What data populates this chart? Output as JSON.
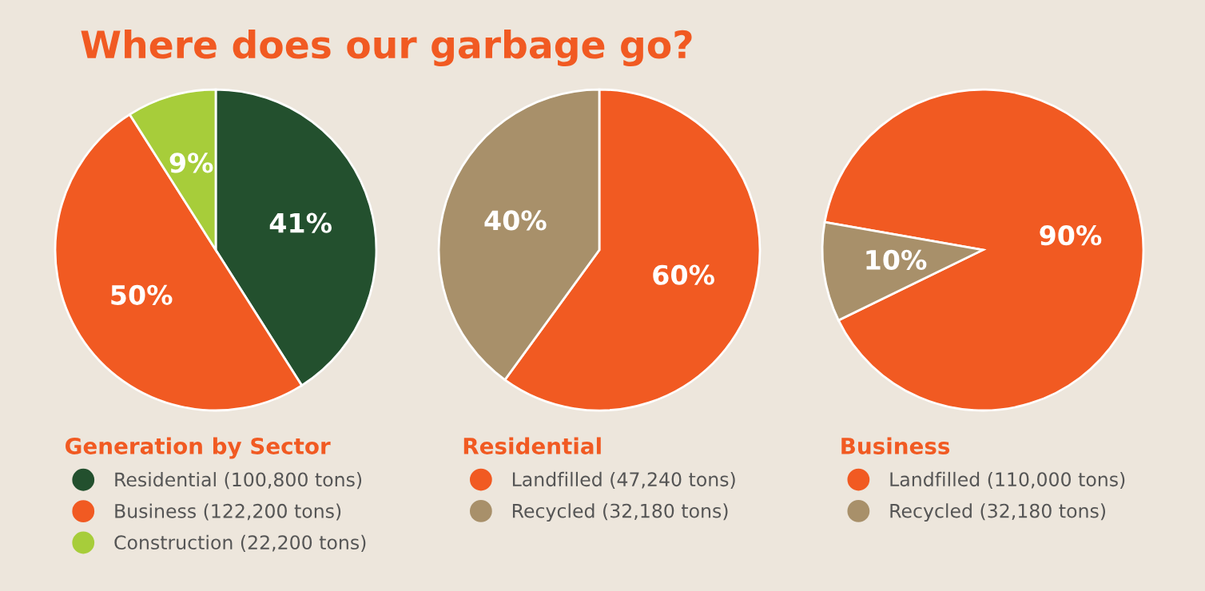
{
  "chart_data": [
    {
      "type": "pie",
      "title": "Where does our garbage go?",
      "legend_title": "Generation by Sector",
      "legend": "bottom",
      "categories": [
        "Residential (100,800 tons)",
        "Business (122,200 tons)",
        "Construction (22,200 tons)"
      ],
      "values": [
        41,
        50,
        9
      ],
      "colors": [
        "#23502e",
        "#f15a22",
        "#a7cd3a"
      ],
      "value_labels": [
        "41%",
        "50%",
        "9%"
      ]
    },
    {
      "type": "pie",
      "legend_title": "Residential",
      "legend": "bottom",
      "categories": [
        "Landfilled (47,240 tons)",
        "Recycled (32,180 tons)"
      ],
      "values": [
        60,
        40
      ],
      "colors": [
        "#f15a22",
        "#a8906a"
      ],
      "value_labels": [
        "60%",
        "40%"
      ]
    },
    {
      "type": "pie",
      "legend_title": "Business",
      "legend": "bottom",
      "categories": [
        "Landfilled (110,000 tons)",
        "Recycled (32,180 tons)"
      ],
      "values": [
        90,
        10
      ],
      "colors": [
        "#f15a22",
        "#a8906a"
      ],
      "value_labels": [
        "90%",
        "10%"
      ]
    }
  ]
}
